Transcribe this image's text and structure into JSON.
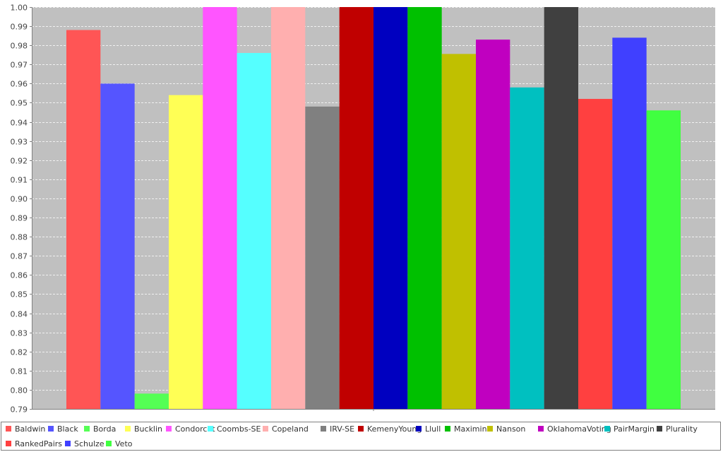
{
  "chart_data": {
    "type": "bar",
    "title": "",
    "xlabel": "",
    "ylabel": "",
    "ylim": [
      0.79,
      1.0
    ],
    "y_ticks": [
      "0.79",
      "0.80",
      "0.81",
      "0.82",
      "0.83",
      "0.84",
      "0.85",
      "0.86",
      "0.87",
      "0.88",
      "0.89",
      "0.90",
      "0.91",
      "0.92",
      "0.93",
      "0.94",
      "0.95",
      "0.96",
      "0.97",
      "0.98",
      "0.99",
      "1.00"
    ],
    "grid": true,
    "plot_background": "#c0c0c0",
    "legend_position": "bottom",
    "series": [
      {
        "name": "Baldwin",
        "value": 0.988,
        "color": "#ff5555"
      },
      {
        "name": "Black",
        "value": 0.96,
        "color": "#5555ff"
      },
      {
        "name": "Borda",
        "value": 0.798,
        "color": "#55ff55"
      },
      {
        "name": "Bucklin",
        "value": 0.954,
        "color": "#ffff55"
      },
      {
        "name": "Condorcet",
        "value": 1.0,
        "color": "#ff55ff"
      },
      {
        "name": "Coombs-SE",
        "value": 0.976,
        "color": "#55ffff"
      },
      {
        "name": "Copeland",
        "value": 1.0,
        "color": "#ffafaf"
      },
      {
        "name": "IRV-SE",
        "value": 0.948,
        "color": "#808080"
      },
      {
        "name": "KemenyYoung",
        "value": 1.0,
        "color": "#c00000"
      },
      {
        "name": "Llull",
        "value": 1.0,
        "color": "#0000c0"
      },
      {
        "name": "Maximin",
        "value": 1.0,
        "color": "#00c000"
      },
      {
        "name": "Nanson",
        "value": 0.9755,
        "color": "#c0c000"
      },
      {
        "name": "OklahomaVoting",
        "value": 0.983,
        "color": "#c000c0"
      },
      {
        "name": "PairMargin",
        "value": 0.958,
        "color": "#00c0c0"
      },
      {
        "name": "Plurality",
        "value": 1.0,
        "color": "#404040"
      },
      {
        "name": "RankedPairs",
        "value": 0.952,
        "color": "#ff4040"
      },
      {
        "name": "Schulze",
        "value": 0.984,
        "color": "#4040ff"
      },
      {
        "name": "Veto",
        "value": 0.946,
        "color": "#40ff40"
      }
    ]
  }
}
